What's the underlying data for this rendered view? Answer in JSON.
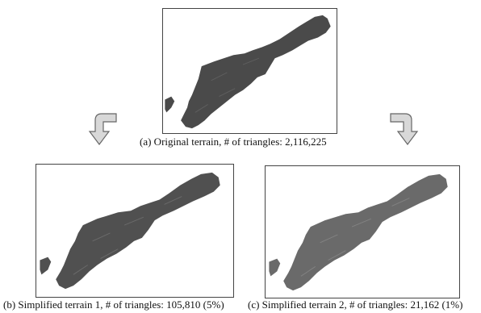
{
  "figure": {
    "panels": [
      {
        "id": "a",
        "caption": "(a) Original terrain, # of triangles: 2,116,225",
        "fill_color": "#4a4a4a"
      },
      {
        "id": "b",
        "caption": "(b) Simplified terrain 1, # of triangles: 105,810 (5%)",
        "fill_color": "#505050"
      },
      {
        "id": "c",
        "caption": "(c) Simplified terrain 2, # of triangles: 21,162 (1%)",
        "fill_color": "#6a6a6a"
      }
    ],
    "arrow_icon": "curved-down-arrow-icon"
  }
}
